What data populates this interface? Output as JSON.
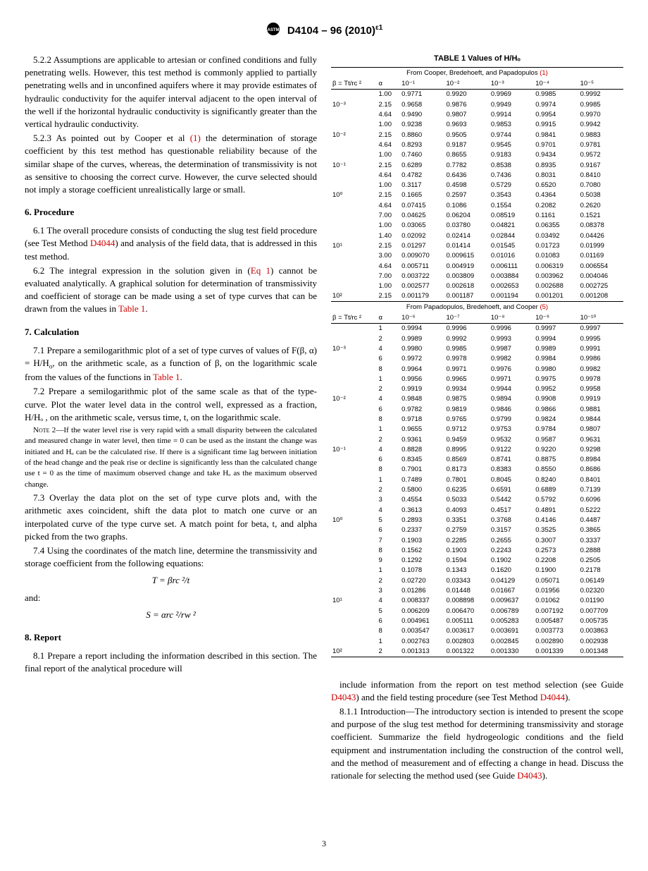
{
  "header": {
    "std_no": "D4104 – 96 (2010)",
    "eps": "ε1"
  },
  "left": {
    "p522": "5.2.2 Assumptions are applicable to artesian or confined conditions and fully penetrating wells. However, this test method is commonly applied to partially penetrating wells and in unconfined aquifers where it may provide estimates of hydraulic conductivity for the aquifer interval adjacent to the open interval of the well if the horizontal hydraulic conductivity is significantly greater than the vertical hydraulic conductivity.",
    "p523a": "5.2.3 As pointed out by Cooper et al ",
    "p523b": " the determination of storage coefficient by this test method has questionable reliability because of the similar shape of the curves, whereas, the determination of transmissivity is not as sensitive to choosing the correct curve. However, the curve selected should not imply a storage coefficient unrealistically large or small.",
    "ref1": "(1)",
    "s6": "6. Procedure",
    "p61a": "6.1 The overall procedure consists of conducting the slug test field procedure (see Test Method ",
    "d4044": "D4044",
    "p61b": ") and analysis of the field data, that is addressed in this test method.",
    "p62a": "6.2 The integral expression in the solution given in (",
    "eq1": "Eq 1",
    "p62b": ") cannot be evaluated analytically. A graphical solution for determination of transmissivity and coefficient of storage can be made using a set of type curves that can be drawn from the values in ",
    "tab1": "Table 1",
    "p62c": ".",
    "s7": "7. Calculation",
    "p71a": "7.1 Prepare a semilogarithmic plot of a set of type curves of values of F(β, α) = H/H",
    "p71b": ", on the arithmetic scale, as a function of β, on the logarithmic scale from the values of the functions in ",
    "p71c": ".",
    "p72": "7.2 Prepare a semilogarithmic plot of the same scale as that of the type-curve. Plot the water level data in the control well, expressed as a fraction, H/Hₒ , on the arithmetic scale, versus time, t, on the logarithmic scale.",
    "note2": "—If the water level rise is very rapid with a small disparity between the calculated and measured change in water level, then time = 0 can be used as the instant the change was initiated and Hₒ can be the calculated rise. If there is a significant time lag between initiation of the head change and the peak rise or decline is significantly less than the calculated change use t = 0 as the time of maximum observed change and take Hₒ as the maximum observed change.",
    "note2_label": "Note 2",
    "p73": "7.3 Overlay the data plot on the set of type curve plots and, with the arithmetic axes coincident, shift the data plot to match one curve or an interpolated curve of the type curve set. A match point for beta, t, and alpha picked from the two graphs.",
    "p74": "7.4 Using the coordinates of the match line, determine the transmissivity and storage coefficient from the following equations:",
    "eqn1": "T = βrc ²/t",
    "and": "and:",
    "eqn2": "S = αrc ²/rw ²",
    "s8": "8. Report",
    "p81": "8.1 Prepare a report including the information described in this section. The final report of the analytical procedure will"
  },
  "right": {
    "p81b": "include information from the report on test method selection (see Guide ",
    "d4043": "D4043",
    "p81c": ") and the field testing procedure (see Test Method ",
    "p81d": ").",
    "p811a": "8.1.1 Introduction—The introductory section is intended to present the scope and purpose of the slug test method for determining transmissivity and storage coefficient. Summarize the field hydrogeologic conditions and the field equipment and instrumentation including the construction of the control well, and the method of measurement and of effecting a change in head. Discuss the rationale for selecting the method used (see Guide ",
    "p811b": ")."
  },
  "table": {
    "title": "TABLE 1 Values of H/Hₒ",
    "src1a": "From Cooper, Bredehoeft, and Papadopulos ",
    "src1b": "(1)",
    "src2a": "From Papadopulos, Bredehoeft, and Cooper ",
    "src2b": "(5)",
    "hdr1": [
      "β = Tt/rc ²",
      "α",
      "10⁻¹",
      "10⁻²",
      "10⁻³",
      "10⁻⁴",
      "10⁻⁵"
    ],
    "hdr2": [
      "β = Tt/rc ²",
      "α",
      "10⁻⁶",
      "10⁻⁷",
      "10⁻⁸",
      "10⁻⁹",
      "10⁻¹⁰"
    ],
    "rows1": [
      [
        "",
        "1.00",
        "0.9771",
        "0.9920",
        "0.9969",
        "0.9985",
        "0.9992"
      ],
      [
        "10⁻³",
        "2.15",
        "0.9658",
        "0.9876",
        "0.9949",
        "0.9974",
        "0.9985"
      ],
      [
        "",
        "4.64",
        "0.9490",
        "0.9807",
        "0.9914",
        "0.9954",
        "0.9970"
      ],
      [
        "",
        "1.00",
        "0.9238",
        "0.9693",
        "0.9853",
        "0.9915",
        "0.9942"
      ],
      [
        "10⁻²",
        "2.15",
        "0.8860",
        "0.9505",
        "0.9744",
        "0.9841",
        "0.9883"
      ],
      [
        "",
        "4.64",
        "0.8293",
        "0.9187",
        "0.9545",
        "0.9701",
        "0.9781"
      ],
      [
        "",
        "1.00",
        "0.7460",
        "0.8655",
        "0.9183",
        "0.9434",
        "0.9572"
      ],
      [
        "10⁻¹",
        "2.15",
        "0.6289",
        "0.7782",
        "0.8538",
        "0.8935",
        "0.9167"
      ],
      [
        "",
        "4.64",
        "0.4782",
        "0.6436",
        "0.7436",
        "0.8031",
        "0.8410"
      ],
      [
        "",
        "1.00",
        "0.3117",
        "0.4598",
        "0.5729",
        "0.6520",
        "0.7080"
      ],
      [
        "10⁰",
        "2.15",
        "0.1665",
        "0.2597",
        "0.3543",
        "0.4364",
        "0.5038"
      ],
      [
        "",
        "4.64",
        "0.07415",
        "0.1086",
        "0.1554",
        "0.2082",
        "0.2620"
      ],
      [
        "",
        "7.00",
        "0.04625",
        "0.06204",
        "0.08519",
        "0.1161",
        "0.1521"
      ],
      [
        "",
        "1.00",
        "0.03065",
        "0.03780",
        "0.04821",
        "0.06355",
        "0.08378"
      ],
      [
        "",
        "1.40",
        "0.02092",
        "0.02414",
        "0.02844",
        "0.03492",
        "0.04426"
      ],
      [
        "10¹",
        "2.15",
        "0.01297",
        "0.01414",
        "0.01545",
        "0.01723",
        "0.01999"
      ],
      [
        "",
        "3.00",
        "0.009070",
        "0.009615",
        "0.01016",
        "0.01083",
        "0.01169"
      ],
      [
        "",
        "4.64",
        "0.005711",
        "0.004919",
        "0.006111",
        "0.006319",
        "0.006554"
      ],
      [
        "",
        "7.00",
        "0.003722",
        "0.003809",
        "0.003884",
        "0.003962",
        "0.004046"
      ],
      [
        "",
        "1.00",
        "0.002577",
        "0.002618",
        "0.002653",
        "0.002688",
        "0.002725"
      ],
      [
        "10²",
        "2.15",
        "0.001179",
        "0.001187",
        "0.001194",
        "0.001201",
        "0.001208"
      ]
    ],
    "rows2": [
      [
        "",
        "1",
        "0.9994",
        "0.9996",
        "0.9996",
        "0.9997",
        "0.9997"
      ],
      [
        "",
        "2",
        "0.9989",
        "0.9992",
        "0.9993",
        "0.9994",
        "0.9995"
      ],
      [
        "10⁻³",
        "4",
        "0.9980",
        "0.9985",
        "0.9987",
        "0.9989",
        "0.9991"
      ],
      [
        "",
        "6",
        "0.9972",
        "0.9978",
        "0.9982",
        "0.9984",
        "0.9986"
      ],
      [
        "",
        "8",
        "0.9964",
        "0.9971",
        "0.9976",
        "0.9980",
        "0.9982"
      ],
      [
        "",
        "1",
        "0.9956",
        "0.9965",
        "0.9971",
        "0.9975",
        "0.9978"
      ],
      [
        "",
        "2",
        "0.9919",
        "0.9934",
        "0.9944",
        "0.9952",
        "0.9958"
      ],
      [
        "10⁻²",
        "4",
        "0.9848",
        "0.9875",
        "0.9894",
        "0.9908",
        "0.9919"
      ],
      [
        "",
        "6",
        "0.9782",
        "0.9819",
        "0.9846",
        "0.9866",
        "0.9881"
      ],
      [
        "",
        "8",
        "0.9718",
        "0.9765",
        "0.9799",
        "0.9824",
        "0.9844"
      ],
      [
        "",
        "1",
        "0.9655",
        "0.9712",
        "0.9753",
        "0.9784",
        "0.9807"
      ],
      [
        "",
        "2",
        "0.9361",
        "0.9459",
        "0.9532",
        "0.9587",
        "0.9631"
      ],
      [
        "10⁻¹",
        "4",
        "0.8828",
        "0.8995",
        "0.9122",
        "0.9220",
        "0.9298"
      ],
      [
        "",
        "6",
        "0.8345",
        "0.8569",
        "0.8741",
        "0.8875",
        "0.8984"
      ],
      [
        "",
        "8",
        "0.7901",
        "0.8173",
        "0.8383",
        "0.8550",
        "0.8686"
      ],
      [
        "",
        "1",
        "0.7489",
        "0.7801",
        "0.8045",
        "0.8240",
        "0.8401"
      ],
      [
        "",
        "2",
        "0.5800",
        "0.6235",
        "0.6591",
        "0.6889",
        "0.7139"
      ],
      [
        "",
        "3",
        "0.4554",
        "0.5033",
        "0.5442",
        "0.5792",
        "0.6096"
      ],
      [
        "",
        "4",
        "0.3613",
        "0.4093",
        "0.4517",
        "0.4891",
        "0.5222"
      ],
      [
        "10⁰",
        "5",
        "0.2893",
        "0.3351",
        "0.3768",
        "0.4146",
        "0.4487"
      ],
      [
        "",
        "6",
        "0.2337",
        "0.2759",
        "0.3157",
        "0.3525",
        "0.3865"
      ],
      [
        "",
        "7",
        "0.1903",
        "0.2285",
        "0.2655",
        "0.3007",
        "0.3337"
      ],
      [
        "",
        "8",
        "0.1562",
        "0.1903",
        "0.2243",
        "0.2573",
        "0.2888"
      ],
      [
        "",
        "9",
        "0.1292",
        "0.1594",
        "0.1902",
        "0.2208",
        "0.2505"
      ],
      [
        "",
        "1",
        "0.1078",
        "0.1343",
        "0.1620",
        "0.1900",
        "0.2178"
      ],
      [
        "",
        "2",
        "0.02720",
        "0.03343",
        "0.04129",
        "0.05071",
        "0.06149"
      ],
      [
        "",
        "3",
        "0.01286",
        "0.01448",
        "0.01667",
        "0.01956",
        "0.02320"
      ],
      [
        "10¹",
        "4",
        "0.008337",
        "0.008898",
        "0.009637",
        "0.01062",
        "0.01190"
      ],
      [
        "",
        "5",
        "0.006209",
        "0.006470",
        "0.006789",
        "0.007192",
        "0.007709"
      ],
      [
        "",
        "6",
        "0.004961",
        "0.005111",
        "0.005283",
        "0.005487",
        "0.005735"
      ],
      [
        "",
        "8",
        "0.003547",
        "0.003617",
        "0.003691",
        "0.003773",
        "0.003863"
      ],
      [
        "",
        "1",
        "0.002763",
        "0.002803",
        "0.002845",
        "0.002890",
        "0.002938"
      ],
      [
        "10²",
        "2",
        "0.001313",
        "0.001322",
        "0.001330",
        "0.001339",
        "0.001348"
      ]
    ]
  },
  "page": "3"
}
